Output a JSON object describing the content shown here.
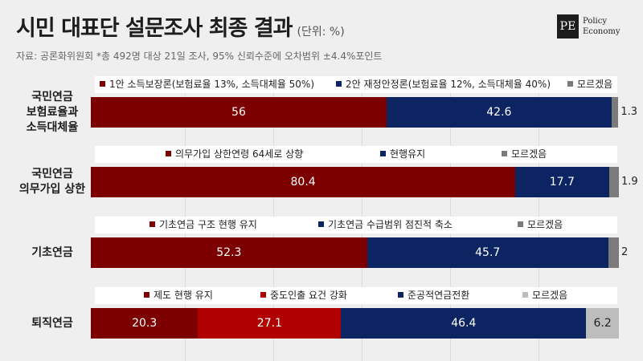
{
  "header": {
    "title": "시민 대표단 설문조사 최종 결과",
    "unit": "(단위: %)",
    "source": "자료: 공론화위원회 *총 492명 대상 21일 조사, 95% 신뢰수준에 오차범위 ±4.4%포인트",
    "logo_mark": "PE",
    "logo_line1": "Policy",
    "logo_line2": "Economy"
  },
  "colors": {
    "dark_red": "#7d0000",
    "red": "#b00000",
    "navy": "#0c2461",
    "dont_know": "#7b7b7b",
    "dont_know_light": "#bdbdbd"
  },
  "chart_data": {
    "type": "bar",
    "orientation": "horizontal-stacked",
    "xlim": [
      0,
      100
    ],
    "rows": [
      {
        "label_lines": [
          "국민연금",
          "보험료율과",
          "소득대체율"
        ],
        "series": [
          {
            "name": "1안 소득보장론(보험료율 13%, 소득대체율 50%)",
            "value": 56,
            "color": "#7d0000"
          },
          {
            "name": "2안 재정안정론(보험료율 12%, 소득대체율 40%)",
            "value": 42.6,
            "color": "#0c2461"
          },
          {
            "name": "모르겠음",
            "value": 1.3,
            "color": "#7b7b7b"
          }
        ]
      },
      {
        "label_lines": [
          "국민연금",
          "의무가입 상한"
        ],
        "series": [
          {
            "name": "의무가입 상한연령 64세로 상향",
            "value": 80.4,
            "color": "#7d0000"
          },
          {
            "name": "현행유지",
            "value": 17.7,
            "color": "#0c2461"
          },
          {
            "name": "모르겠음",
            "value": 1.9,
            "color": "#7b7b7b"
          }
        ]
      },
      {
        "label_lines": [
          "기초연금"
        ],
        "series": [
          {
            "name": "기초연금 구조 현행 유지",
            "value": 52.3,
            "color": "#7d0000"
          },
          {
            "name": "기초연금 수급범위 점진적 축소",
            "value": 45.7,
            "color": "#0c2461"
          },
          {
            "name": "모르겠음",
            "value": 2,
            "color": "#7b7b7b"
          }
        ]
      },
      {
        "label_lines": [
          "퇴직연금"
        ],
        "series": [
          {
            "name": "제도 현행 유지",
            "value": 20.3,
            "color": "#7d0000"
          },
          {
            "name": "중도인출 요건 강화",
            "value": 27.1,
            "color": "#b00000"
          },
          {
            "name": "준공적연금전환",
            "value": 46.4,
            "color": "#0c2461"
          },
          {
            "name": "모르겠음",
            "value": 6.2,
            "color": "#bdbdbd"
          }
        ]
      }
    ]
  }
}
